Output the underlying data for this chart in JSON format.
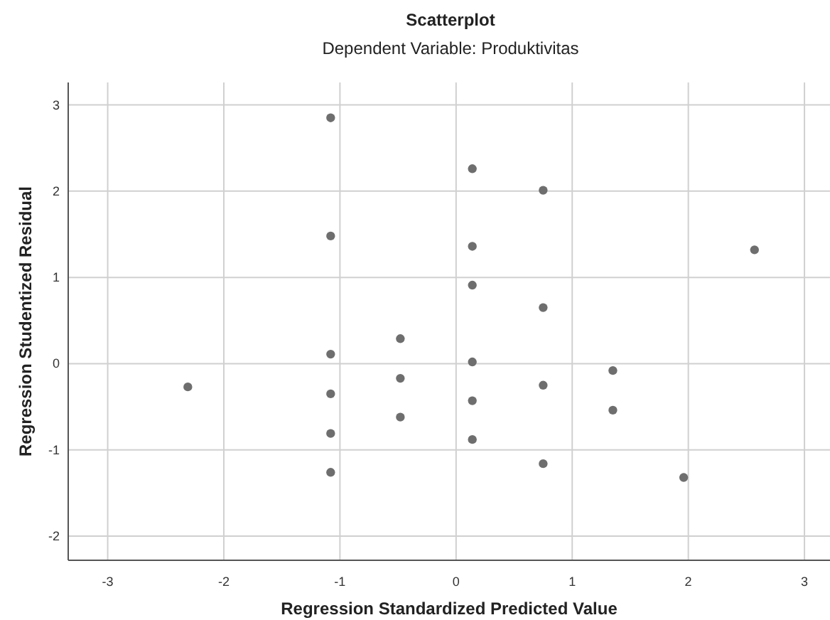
{
  "chart_data": {
    "type": "scatter",
    "title": "Scatterplot",
    "subtitle": "Dependent Variable: Produktivitas",
    "xlabel": "Regression Standardized Predicted Value",
    "ylabel": "Regression Studentized Residual",
    "x": [
      -2.31,
      -1.08,
      -1.08,
      -1.08,
      -1.08,
      -1.08,
      -1.08,
      -0.48,
      -0.48,
      -0.48,
      0.14,
      0.14,
      0.14,
      0.14,
      0.14,
      0.14,
      0.75,
      0.75,
      0.75,
      0.75,
      1.35,
      1.35,
      1.96,
      2.57
    ],
    "values": [
      -0.27,
      2.85,
      1.48,
      0.11,
      -0.35,
      -0.81,
      -1.26,
      0.29,
      -0.17,
      -0.62,
      2.26,
      1.36,
      0.91,
      0.02,
      -0.43,
      -0.88,
      2.01,
      0.65,
      -0.25,
      -1.16,
      -0.08,
      -0.54,
      -1.32,
      1.32
    ],
    "color": "#6e6e6e",
    "marker": "circle",
    "grid": true,
    "xlim": [
      -3.34,
      3.22
    ],
    "xticks": [
      -3,
      -2,
      -1,
      0,
      1,
      2,
      3
    ],
    "ylim": [
      -2.28,
      3.26
    ],
    "yticks": [
      -2,
      -1,
      0,
      1,
      2,
      3
    ]
  }
}
